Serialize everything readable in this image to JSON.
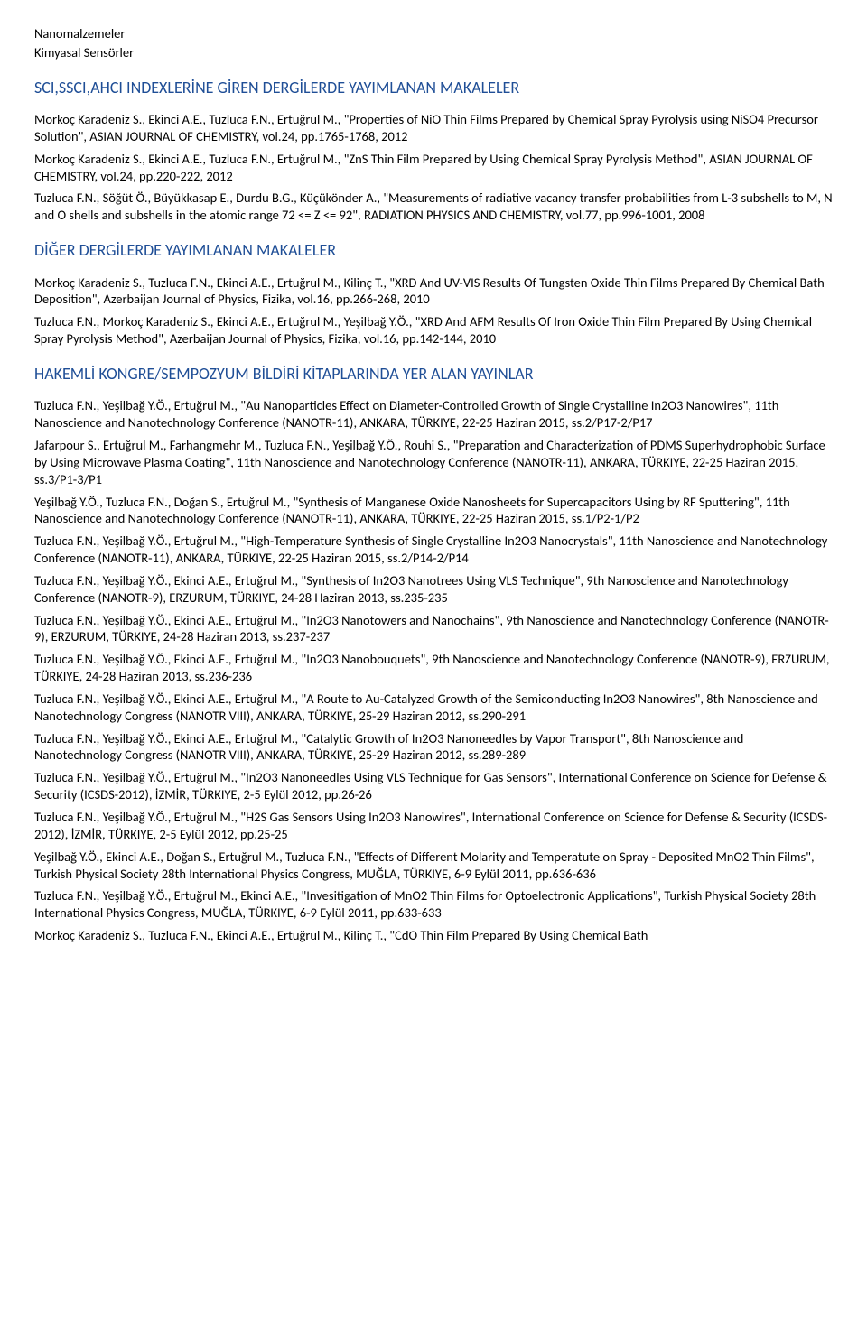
{
  "topics": [
    "Nanomalzemeler",
    "Kimyasal Sensörler"
  ],
  "sections": {
    "sci": {
      "title": "SCI,SSCI,AHCI INDEXLERİNE GİREN DERGİLERDE YAYIMLANAN MAKALELER",
      "items": [
        "Morkoç Karadeniz S., Ekinci A.E., Tuzluca F.N., Ertuğrul M., \"Properties of NiO Thin Films Prepared by Chemical Spray Pyrolysis using NiSO4 Precursor Solution\", ASIAN JOURNAL OF CHEMISTRY, vol.24, pp.1765-1768, 2012",
        "Morkoç Karadeniz S., Ekinci A.E., Tuzluca F.N., Ertuğrul M., \"ZnS Thin Film Prepared by Using Chemical Spray Pyrolysis Method\", ASIAN JOURNAL OF CHEMISTRY, vol.24, pp.220-222, 2012",
        "Tuzluca F.N., Söğüt Ö., Büyükkasap E., Durdu B.G., Küçükönder A., \"Measurements of radiative vacancy transfer probabilities from L-3 subshells to M, N and O shells and subshells in the atomic range 72 <= Z <= 92\", RADIATION PHYSICS AND CHEMISTRY, vol.77, pp.996-1001, 2008"
      ]
    },
    "other": {
      "title": "DİĞER DERGİLERDE YAYIMLANAN MAKALELER",
      "items": [
        "Morkoç Karadeniz S., Tuzluca F.N., Ekinci A.E., Ertuğrul M., Kilinç T., \"XRD And UV-VIS Results Of Tungsten Oxide Thin Films Prepared By Chemical Bath Deposition\", Azerbaijan Journal of Physics, Fizika, vol.16, pp.266-268, 2010",
        "Tuzluca F.N., Morkoç Karadeniz S., Ekinci A.E., Ertuğrul M., Yeşilbağ Y.Ö., \"XRD And AFM Results Of Iron Oxide Thin Film Prepared By Using Chemical Spray Pyrolysis Method\", Azerbaijan Journal of Physics, Fizika, vol.16, pp.142-144, 2010"
      ]
    },
    "conf": {
      "title": "HAKEMLİ KONGRE/SEMPOZYUM BİLDİRİ KİTAPLARINDA YER ALAN YAYINLAR",
      "items": [
        "Tuzluca F.N., Yeşilbağ Y.Ö., Ertuğrul M., \"Au Nanoparticles Effect on Diameter-Controlled Growth of Single Crystalline In2O3 Nanowires\", 11th Nanoscience and Nanotechnology Conference (NANOTR-11), ANKARA, TÜRKIYE, 22-25 Haziran 2015, ss.2/P17-2/P17",
        "Jafarpour S., Ertuğrul M., Farhangmehr M., Tuzluca F.N., Yeşilbağ Y.Ö., Rouhi S., \"Preparation and Characterization of PDMS Superhydrophobic Surface by Using Microwave Plasma Coating\", 11th Nanoscience and Nanotechnology Conference (NANOTR-11), ANKARA, TÜRKIYE, 22-25 Haziran 2015, ss.3/P1-3/P1",
        "Yeşilbağ Y.Ö., Tuzluca F.N., Doğan S., Ertuğrul M., \"Synthesis of Manganese Oxide Nanosheets for Supercapacitors Using by RF Sputtering\", 11th Nanoscience and Nanotechnology Conference (NANOTR-11), ANKARA, TÜRKIYE, 22-25 Haziran 2015, ss.1/P2-1/P2",
        "Tuzluca F.N., Yeşilbağ Y.Ö., Ertuğrul M., \"High-Temperature Synthesis of Single Crystalline In2O3 Nanocrystals\", 11th Nanoscience and Nanotechnology Conference (NANOTR-11), ANKARA, TÜRKIYE, 22-25 Haziran 2015, ss.2/P14-2/P14",
        "Tuzluca F.N., Yeşilbağ Y.Ö., Ekinci A.E., Ertuğrul M., \"Synthesis of In2O3 Nanotrees Using VLS Technique\", 9th Nanoscience and Nanotechnology Conference (NANOTR-9), ERZURUM, TÜRKIYE, 24-28 Haziran 2013, ss.235-235",
        "Tuzluca F.N., Yeşilbağ Y.Ö., Ekinci A.E., Ertuğrul M., \"In2O3 Nanotowers and Nanochains\", 9th Nanoscience and Nanotechnology Conference (NANOTR-9), ERZURUM, TÜRKIYE, 24-28 Haziran 2013, ss.237-237",
        "Tuzluca F.N., Yeşilbağ Y.Ö., Ekinci A.E., Ertuğrul M., \"In2O3 Nanobouquets\", 9th Nanoscience and Nanotechnology Conference (NANOTR-9), ERZURUM, TÜRKIYE, 24-28 Haziran 2013, ss.236-236",
        "Tuzluca F.N., Yeşilbağ Y.Ö., Ekinci A.E., Ertuğrul M., \"A Route to Au-Catalyzed Growth of the Semiconducting In2O3 Nanowires\", 8th Nanoscience and Nanotechnology Congress (NANOTR VIII), ANKARA, TÜRKIYE, 25-29 Haziran 2012, ss.290-291",
        "Tuzluca F.N., Yeşilbağ Y.Ö., Ekinci A.E., Ertuğrul M., \"Catalytic Growth of In2O3 Nanoneedles by Vapor Transport\", 8th Nanoscience and Nanotechnology Congress (NANOTR VIII), ANKARA, TÜRKIYE, 25-29 Haziran 2012, ss.289-289",
        "Tuzluca F.N., Yeşilbağ Y.Ö., Ertuğrul M., \"In2O3 Nanoneedles Using VLS Technique for Gas Sensors\", International Conference on Science for Defense & Security (ICSDS-2012), İZMİR, TÜRKIYE, 2-5 Eylül 2012, pp.26-26",
        "Tuzluca F.N., Yeşilbağ Y.Ö., Ertuğrul M., \"H2S Gas Sensors Using In2O3 Nanowires\", International Conference on Science for Defense & Security (ICSDS-2012), İZMİR, TÜRKIYE, 2-5 Eylül 2012, pp.25-25",
        "Yeşilbağ Y.Ö., Ekinci A.E., Doğan S., Ertuğrul M., Tuzluca F.N., \"Effects of Different Molarity and Temperatute on Spray - Deposited MnO2 Thin Films\", Turkish Physical Society 28th International Physics Congress, MUĞLA, TÜRKIYE, 6-9 Eylül 2011, pp.636-636",
        "Tuzluca F.N., Yeşilbağ Y.Ö., Ertuğrul M., Ekinci A.E., \"Invesitigation of MnO2 Thin Films for Optoelectronic Applications\", Turkish Physical Society 28th International Physics Congress, MUĞLA, TÜRKIYE, 6-9 Eylül 2011, pp.633-633",
        "Morkoç Karadeniz S., Tuzluca F.N., Ekinci A.E., Ertuğrul M., Kilinç T., \"CdO Thin Film Prepared By Using Chemical Bath"
      ]
    }
  }
}
